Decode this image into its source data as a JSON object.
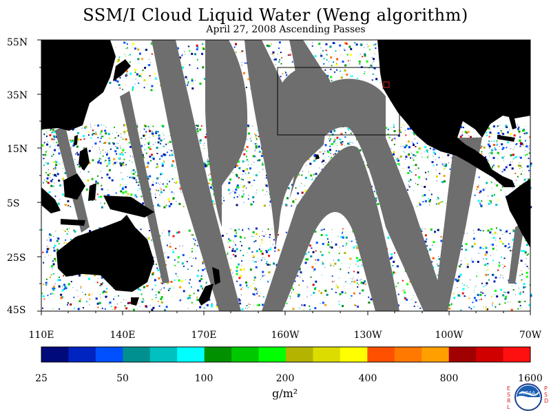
{
  "title": "SSM/I Cloud Liquid Water (Weng algorithm)",
  "subtitle": "April 27, 2008  Ascending Passes",
  "lat_labels": [
    "55N",
    "35N",
    "15N",
    "5S",
    "25S",
    "45S"
  ],
  "lon_labels": [
    "110E",
    "140E",
    "170E",
    "160W",
    "130W",
    "100W",
    "70W"
  ],
  "colorbar": {
    "tick_labels": [
      "25",
      "50",
      "100",
      "200",
      "400",
      "800",
      "1600"
    ],
    "units": "g/m²",
    "colors": [
      "#000a7a",
      "#0024c0",
      "#0050ff",
      "#009090",
      "#00c0c0",
      "#00ffff",
      "#009000",
      "#00c800",
      "#00ff00",
      "#b4b400",
      "#dcdc00",
      "#ffff00",
      "#ff5000",
      "#ff7800",
      "#ffa000",
      "#a00000",
      "#d00000",
      "#ff1010"
    ]
  },
  "logo": {
    "left_letters": "ESRL",
    "right_letters": "PSD",
    "emblem_text": "NOAA"
  },
  "colors": {
    "land": "#000000",
    "no_data_gap": "#6e6e6e",
    "clear_ocean": "#ffffff",
    "region_box": "#000000",
    "marker": "#e02020"
  }
}
